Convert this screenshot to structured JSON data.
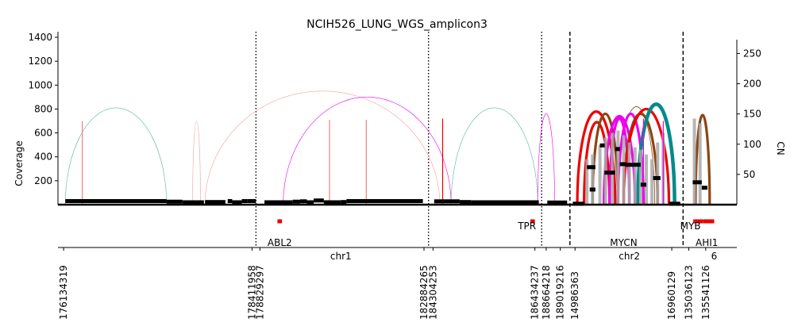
{
  "chart_data": {
    "type": "line",
    "title": "NCIH526_LUNG_WGS_amplicon3",
    "ylabel": "Coverage",
    "y2label": "CN",
    "ylim": [
      0,
      1400
    ],
    "y2lim": [
      0,
      286
    ],
    "yticks": [
      200,
      400,
      600,
      800,
      1000,
      1200,
      1400
    ],
    "y2ticks": [
      50,
      100,
      150,
      200,
      250
    ],
    "grid": false,
    "chromosome_labels": [
      {
        "label": "chr1",
        "pos": 0.5
      },
      {
        "label": "chr2",
        "pos": 1.01
      },
      {
        "label": "6",
        "pos": 1.16
      }
    ],
    "segment_boundaries": [
      {
        "pos": 0.35,
        "style": "dotted"
      },
      {
        "pos": 0.655,
        "style": "dotted"
      },
      {
        "pos": 0.855,
        "style": "dotted"
      },
      {
        "pos": 0.905,
        "style": "dashed"
      },
      {
        "pos": 1.105,
        "style": "dashed"
      }
    ],
    "position_labels": [
      {
        "label": "176134319",
        "pos": 0.01
      },
      {
        "label": "178411958",
        "pos": 0.343
      },
      {
        "label": "178829297",
        "pos": 0.357
      },
      {
        "label": "182884265",
        "pos": 0.647
      },
      {
        "label": "184304253",
        "pos": 0.663
      },
      {
        "label": "186434237",
        "pos": 0.843
      },
      {
        "label": "188664218",
        "pos": 0.863
      },
      {
        "label": "189019216",
        "pos": 0.888
      },
      {
        "label": "14986363",
        "pos": 0.914
      },
      {
        "label": "16960129",
        "pos": 1.085
      },
      {
        "label": "135036123",
        "pos": 1.115
      },
      {
        "label": "135541126",
        "pos": 1.145
      }
    ],
    "genes": [
      {
        "name": "ABL2",
        "start": 0.388,
        "end": 0.396,
        "label_pos": 0.392
      },
      {
        "name": "TPR",
        "start": 0.835,
        "end": 0.843,
        "label_pos": 0.829
      },
      {
        "name": "MYCN",
        "start": 1.0,
        "end": 1.0,
        "label_pos": 1.0
      },
      {
        "name": "MYB",
        "start": 1.123,
        "end": 1.14,
        "label_pos": 1.118
      },
      {
        "name": "AHI1",
        "start": 1.14,
        "end": 1.16,
        "label_pos": 1.147
      }
    ],
    "coverage_segments": [
      {
        "start": 0.013,
        "end": 0.192,
        "coverage": 30
      },
      {
        "start": 0.192,
        "end": 0.22,
        "coverage": 25
      },
      {
        "start": 0.22,
        "end": 0.258,
        "coverage": 20
      },
      {
        "start": 0.26,
        "end": 0.296,
        "coverage": 22
      },
      {
        "start": 0.3,
        "end": 0.308,
        "coverage": 30
      },
      {
        "start": 0.308,
        "end": 0.325,
        "coverage": 20
      },
      {
        "start": 0.325,
        "end": 0.335,
        "coverage": 30
      },
      {
        "start": 0.335,
        "end": 0.35,
        "coverage": 30
      },
      {
        "start": 0.365,
        "end": 0.415,
        "coverage": 20
      },
      {
        "start": 0.415,
        "end": 0.428,
        "coverage": 25
      },
      {
        "start": 0.428,
        "end": 0.44,
        "coverage": 28
      },
      {
        "start": 0.44,
        "end": 0.452,
        "coverage": 20
      },
      {
        "start": 0.452,
        "end": 0.47,
        "coverage": 35
      },
      {
        "start": 0.47,
        "end": 0.5,
        "coverage": 20
      },
      {
        "start": 0.5,
        "end": 0.51,
        "coverage": 22
      },
      {
        "start": 0.51,
        "end": 0.645,
        "coverage": 30
      },
      {
        "start": 0.665,
        "end": 0.71,
        "coverage": 28
      },
      {
        "start": 0.71,
        "end": 0.73,
        "coverage": 22
      },
      {
        "start": 0.73,
        "end": 0.85,
        "coverage": 20
      },
      {
        "start": 0.865,
        "end": 0.9,
        "coverage": 18
      },
      {
        "start": 0.91,
        "end": 0.93,
        "coverage": 8
      },
      {
        "start": 1.08,
        "end": 1.1,
        "coverage": 8
      }
    ],
    "coverage_bars": [
      {
        "pos": 0.043,
        "coverage": 700,
        "color": "#f08080"
      },
      {
        "pos": 0.48,
        "coverage": 710,
        "color": "#f08080"
      },
      {
        "pos": 0.545,
        "coverage": 710,
        "color": "#f08080"
      },
      {
        "pos": 0.68,
        "coverage": 720,
        "color": "#ee0000"
      },
      {
        "pos": 0.935,
        "coverage": 380,
        "color": "#a9a9a9"
      },
      {
        "pos": 0.945,
        "coverage": 420,
        "color": "#a9a9a9"
      },
      {
        "pos": 0.958,
        "coverage": 500,
        "color": "#a9a9a9"
      },
      {
        "pos": 0.968,
        "coverage": 560,
        "color": "#a9a9a9"
      },
      {
        "pos": 0.98,
        "coverage": 600,
        "color": "#a9a9a9"
      },
      {
        "pos": 0.99,
        "coverage": 620,
        "color": "#a9a9a9"
      },
      {
        "pos": 1.0,
        "coverage": 580,
        "color": "#a9a9a9"
      },
      {
        "pos": 1.01,
        "coverage": 520,
        "color": "#a9a9a9"
      },
      {
        "pos": 1.02,
        "coverage": 480,
        "color": "#a9a9a9"
      },
      {
        "pos": 1.03,
        "coverage": 460,
        "color": "#a9a9a9"
      },
      {
        "pos": 1.04,
        "coverage": 420,
        "color": "#a9a9a9"
      },
      {
        "pos": 1.05,
        "coverage": 380,
        "color": "#a9a9a9"
      },
      {
        "pos": 1.06,
        "coverage": 520,
        "color": "#a9a9a9"
      },
      {
        "pos": 1.07,
        "coverage": 600,
        "color": "#a9a9a9"
      },
      {
        "pos": 1.035,
        "coverage": 720,
        "color": "#ee00ee"
      },
      {
        "pos": 1.07,
        "coverage": 700,
        "color": "#ee00ee"
      },
      {
        "pos": 1.125,
        "coverage": 720,
        "color": "#a9a9a9"
      },
      {
        "pos": 1.135,
        "coverage": 680,
        "color": "#a9a9a9"
      }
    ],
    "cn_segments": [
      {
        "start": 0.935,
        "end": 0.95,
        "cn": 62
      },
      {
        "start": 0.94,
        "end": 0.95,
        "cn": 25
      },
      {
        "start": 0.958,
        "end": 0.966,
        "cn": 98
      },
      {
        "start": 0.966,
        "end": 0.985,
        "cn": 53
      },
      {
        "start": 0.985,
        "end": 0.993,
        "cn": 92
      },
      {
        "start": 0.993,
        "end": 1.003,
        "cn": 67
      },
      {
        "start": 1.003,
        "end": 1.018,
        "cn": 66
      },
      {
        "start": 1.018,
        "end": 1.03,
        "cn": 66
      },
      {
        "start": 1.03,
        "end": 1.04,
        "cn": 33
      },
      {
        "start": 1.052,
        "end": 1.065,
        "cn": 44
      },
      {
        "start": 1.122,
        "end": 1.138,
        "cn": 37
      },
      {
        "start": 1.138,
        "end": 1.148,
        "cn": 28
      }
    ],
    "breakpoints": [
      {
        "start": 0.013,
        "end": 0.192,
        "height": 810,
        "color": "#5fb3a5",
        "width": 0.6
      },
      {
        "start": 0.238,
        "end": 0.252,
        "height": 700,
        "color": "#f5a0a0",
        "width": 0.6
      },
      {
        "start": 0.26,
        "end": 0.675,
        "height": 950,
        "color": "#f5a0a0",
        "width": 0.6
      },
      {
        "start": 0.398,
        "end": 0.695,
        "height": 900,
        "color": "#ee00ee",
        "width": 0.6
      },
      {
        "start": 0.695,
        "end": 0.848,
        "height": 810,
        "color": "#5fb3a5",
        "width": 0.6
      },
      {
        "start": 0.848,
        "end": 0.878,
        "height": 760,
        "color": "#ee00ee",
        "width": 0.6
      },
      {
        "start": 0.918,
        "end": 0.985,
        "height": 780,
        "color": "#ee0000",
        "width": 3.2
      },
      {
        "start": 0.93,
        "end": 0.975,
        "height": 690,
        "color": "#ee0000",
        "width": 3.2
      },
      {
        "start": 0.945,
        "end": 0.99,
        "height": 760,
        "color": "#8b4513",
        "width": 3.2
      },
      {
        "start": 0.965,
        "end": 1.02,
        "height": 740,
        "color": "#ee00ee",
        "width": 3.2
      },
      {
        "start": 0.975,
        "end": 1.01,
        "height": 720,
        "color": "#ee00ee",
        "width": 3.2
      },
      {
        "start": 0.99,
        "end": 1.055,
        "height": 820,
        "color": "#8b4513",
        "width": 0.8
      },
      {
        "start": 0.99,
        "end": 1.035,
        "height": 760,
        "color": "#ee00ee",
        "width": 3.2
      },
      {
        "start": 1.0,
        "end": 1.06,
        "height": 760,
        "color": "#8b4513",
        "width": 3.2
      },
      {
        "start": 1.0,
        "end": 1.08,
        "height": 800,
        "color": "#ee0000",
        "width": 3.2
      },
      {
        "start": 1.025,
        "end": 1.09,
        "height": 840,
        "color": "#008b8b",
        "width": 4.5
      },
      {
        "start": 1.127,
        "end": 1.152,
        "height": 750,
        "color": "#8b4513",
        "width": 3.2
      }
    ]
  }
}
